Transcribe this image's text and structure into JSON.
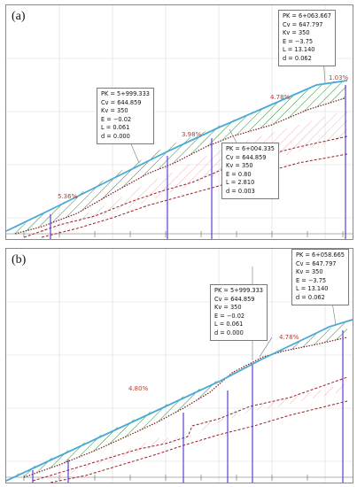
{
  "panels": [
    {
      "label": "(a)",
      "callouts": [
        {
          "pk": "PK = 5+999.333",
          "cv": "Cv = 644.859",
          "kv": "Kv = 350",
          "e": "E = −0.02",
          "l": "L = 0.061",
          "d": "d = 0.000"
        },
        {
          "pk": "PK = 6+004.335",
          "cv": "Cv = 644.859",
          "kv": "Kv = 350",
          "e": "E = 0.80",
          "l": "L = 2.810",
          "d": "d = 0.003"
        },
        {
          "pk": "PK = 6+063.667",
          "cv": "Cv = 647.797",
          "kv": "Kv = 350",
          "e": "E = −3.75",
          "l": "L = 13.140",
          "d": "d = 0.062"
        }
      ],
      "grades": [
        "5.36%",
        "3.98%",
        "4.78%",
        "1.03%"
      ]
    },
    {
      "label": "(b)",
      "callouts": [
        {
          "pk": "PK = 5+999.333",
          "cv": "Cv = 644.859",
          "kv": "Kv = 350",
          "e": "E = −0.02",
          "l": "L = 0.061",
          "d": "d = 0.000"
        },
        {
          "pk": "PK = 6+058.665",
          "cv": "Cv = 647.797",
          "kv": "Kv = 350",
          "e": "E = −3.75",
          "l": "L = 13.140",
          "d": "d = 0.062"
        }
      ],
      "grades": [
        "4.80%",
        "4.78%"
      ]
    }
  ],
  "colors": {
    "grade_line": "#4aa9d8",
    "terrain": "#7a1a1a",
    "hatch_fill": "#2e8b3a",
    "hatch_cut": "#e8a0b0",
    "vertical": "#5b3fd1",
    "grid": "#d9d9d9"
  }
}
